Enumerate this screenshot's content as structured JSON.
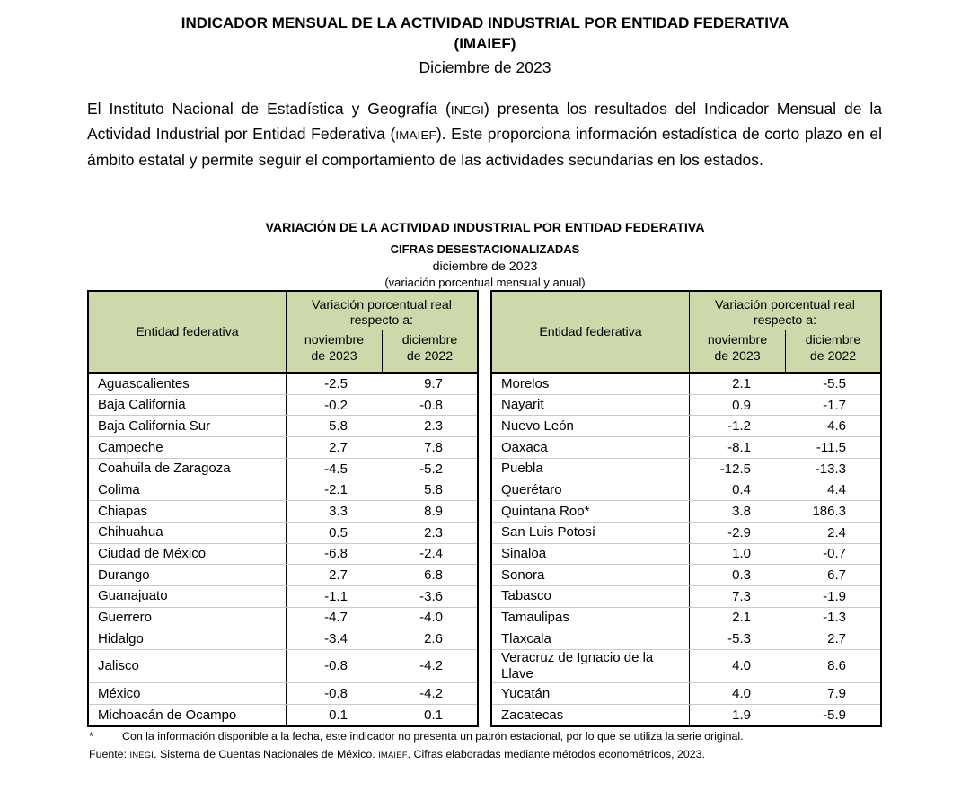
{
  "document": {
    "title_line1": "INDICADOR MENSUAL DE LA ACTIVIDAD INDUSTRIAL POR ENTIDAD FEDERATIVA",
    "title_line2": "(IMAIEF)",
    "subtitle": "Diciembre de 2023",
    "intro_segments": [
      {
        "text": "El Instituto Nacional de Estadística y Geografía ("
      },
      {
        "text": "INEGI",
        "small_caps": true
      },
      {
        "text": ") presenta los resultados del Indicador Mensual de la Actividad Industrial por Entidad Federativa ("
      },
      {
        "text": "IMAIEF",
        "small_caps": true
      },
      {
        "text": "). Este proporciona información estadística de corto plazo en el ámbito estatal y permite seguir el comportamiento de las actividades secundarias en los estados."
      }
    ]
  },
  "section": {
    "heading": "VARIACIÓN DE LA ACTIVIDAD INDUSTRIAL POR ENTIDAD FEDERATIVA",
    "subheading": "CIFRAS DESESTACIONALIZADAS",
    "period": "diciembre de 2023",
    "note": "(variación porcentual mensual y anual)"
  },
  "table_header": {
    "entity": "Entidad federativa",
    "group": "Variación porcentual real\nrespecto a:",
    "month1": "noviembre\nde 2023",
    "month2": "diciembre\nde 2022"
  },
  "colors": {
    "header_bg": "#cdd8ab",
    "border": "#000000",
    "row_separator": "#c9c9c9"
  },
  "tables": {
    "left_rows": [
      {
        "entity": "Aguascalientes",
        "nov": "-2.5",
        "dec": "9.7"
      },
      {
        "entity": "Baja California",
        "nov": "-0.2",
        "dec": "-0.8"
      },
      {
        "entity": "Baja California Sur",
        "nov": "5.8",
        "dec": "2.3"
      },
      {
        "entity": "Campeche",
        "nov": "2.7",
        "dec": "7.8"
      },
      {
        "entity": "Coahuila de Zaragoza",
        "nov": "-4.5",
        "dec": "-5.2"
      },
      {
        "entity": "Colima",
        "nov": "-2.1",
        "dec": "5.8"
      },
      {
        "entity": "Chiapas",
        "nov": "3.3",
        "dec": "8.9"
      },
      {
        "entity": "Chihuahua",
        "nov": "0.5",
        "dec": "2.3"
      },
      {
        "entity": "Ciudad de México",
        "nov": "-6.8",
        "dec": "-2.4"
      },
      {
        "entity": "Durango",
        "nov": "2.7",
        "dec": "6.8"
      },
      {
        "entity": "Guanajuato",
        "nov": "-1.1",
        "dec": "-3.6"
      },
      {
        "entity": "Guerrero",
        "nov": "-4.7",
        "dec": "-4.0"
      },
      {
        "entity": "Hidalgo",
        "nov": "-3.4",
        "dec": "2.6"
      },
      {
        "entity": "Jalisco",
        "nov": "-0.8",
        "dec": "-4.2",
        "tall": true
      },
      {
        "entity": "México",
        "nov": "-0.8",
        "dec": "-4.2"
      },
      {
        "entity": "Michoacán de Ocampo",
        "nov": "0.1",
        "dec": "0.1"
      }
    ],
    "right_rows": [
      {
        "entity": "Morelos",
        "nov": "2.1",
        "dec": "-5.5"
      },
      {
        "entity": "Nayarit",
        "nov": "0.9",
        "dec": "-1.7"
      },
      {
        "entity": "Nuevo León",
        "nov": "-1.2",
        "dec": "4.6"
      },
      {
        "entity": "Oaxaca",
        "nov": "-8.1",
        "dec": "-11.5"
      },
      {
        "entity": "Puebla",
        "nov": "-12.5",
        "dec": "-13.3"
      },
      {
        "entity": "Querétaro",
        "nov": "0.4",
        "dec": "4.4"
      },
      {
        "entity": "Quintana Roo*",
        "nov": "3.8",
        "dec": "186.3"
      },
      {
        "entity": "San Luis Potosí",
        "nov": "-2.9",
        "dec": "2.4"
      },
      {
        "entity": "Sinaloa",
        "nov": "1.0",
        "dec": "-0.7"
      },
      {
        "entity": "Sonora",
        "nov": "0.3",
        "dec": "6.7"
      },
      {
        "entity": "Tabasco",
        "nov": "7.3",
        "dec": "-1.9"
      },
      {
        "entity": "Tamaulipas",
        "nov": "2.1",
        "dec": "-1.3"
      },
      {
        "entity": "Tlaxcala",
        "nov": "-5.3",
        "dec": "2.7"
      },
      {
        "entity": "Veracruz de Ignacio de la Llave",
        "nov": "4.0",
        "dec": "8.6",
        "tall": true
      },
      {
        "entity": "Yucatán",
        "nov": "4.0",
        "dec": "7.9"
      },
      {
        "entity": "Zacatecas",
        "nov": "1.9",
        "dec": "-5.9"
      }
    ]
  },
  "footnotes": {
    "symbol": "*",
    "note": "Con la información disponible a la fecha, este indicador no presenta un patrón estacional, por lo que se utiliza la serie original.",
    "source_segments": [
      {
        "text": "Fuente: "
      },
      {
        "text": "INEGI",
        "small_caps": true
      },
      {
        "text": ". Sistema de Cuentas Nacionales de México. "
      },
      {
        "text": "IMAIEF",
        "small_caps": true
      },
      {
        "text": ". Cifras elaboradas mediante métodos econométricos, 2023."
      }
    ]
  }
}
